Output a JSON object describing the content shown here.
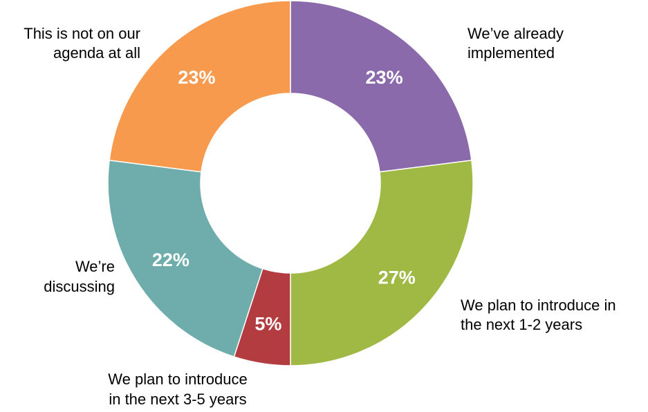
{
  "chart_data": {
    "type": "pie",
    "variant": "donut",
    "title": "",
    "categories": [
      "We've already implemented",
      "We plan to introduce in the next 1-2 years",
      "We plan to introduce in the next 3-5 years",
      "We're discussing",
      "This is not on our agenda at all"
    ],
    "category_lines": [
      [
        "We’ve already",
        "implemented"
      ],
      [
        "We plan to introduce in",
        "the next 1-2 years"
      ],
      [
        "We plan to introduce",
        "in the next 3-5 years"
      ],
      [
        "We’re",
        "discussing"
      ],
      [
        "This is not on our",
        "agenda at all"
      ]
    ],
    "values": [
      23,
      27,
      5,
      22,
      23
    ],
    "value_labels": [
      "23%",
      "27%",
      "5%",
      "22%",
      "23%"
    ],
    "unit": "%",
    "colors": [
      "#8b6aab",
      "#9fb944",
      "#b23c3f",
      "#6fadac",
      "#f79a4e"
    ],
    "start_angle": "12 o'clock",
    "direction": "clockwise",
    "legend": "none",
    "label_placement": "outside"
  }
}
